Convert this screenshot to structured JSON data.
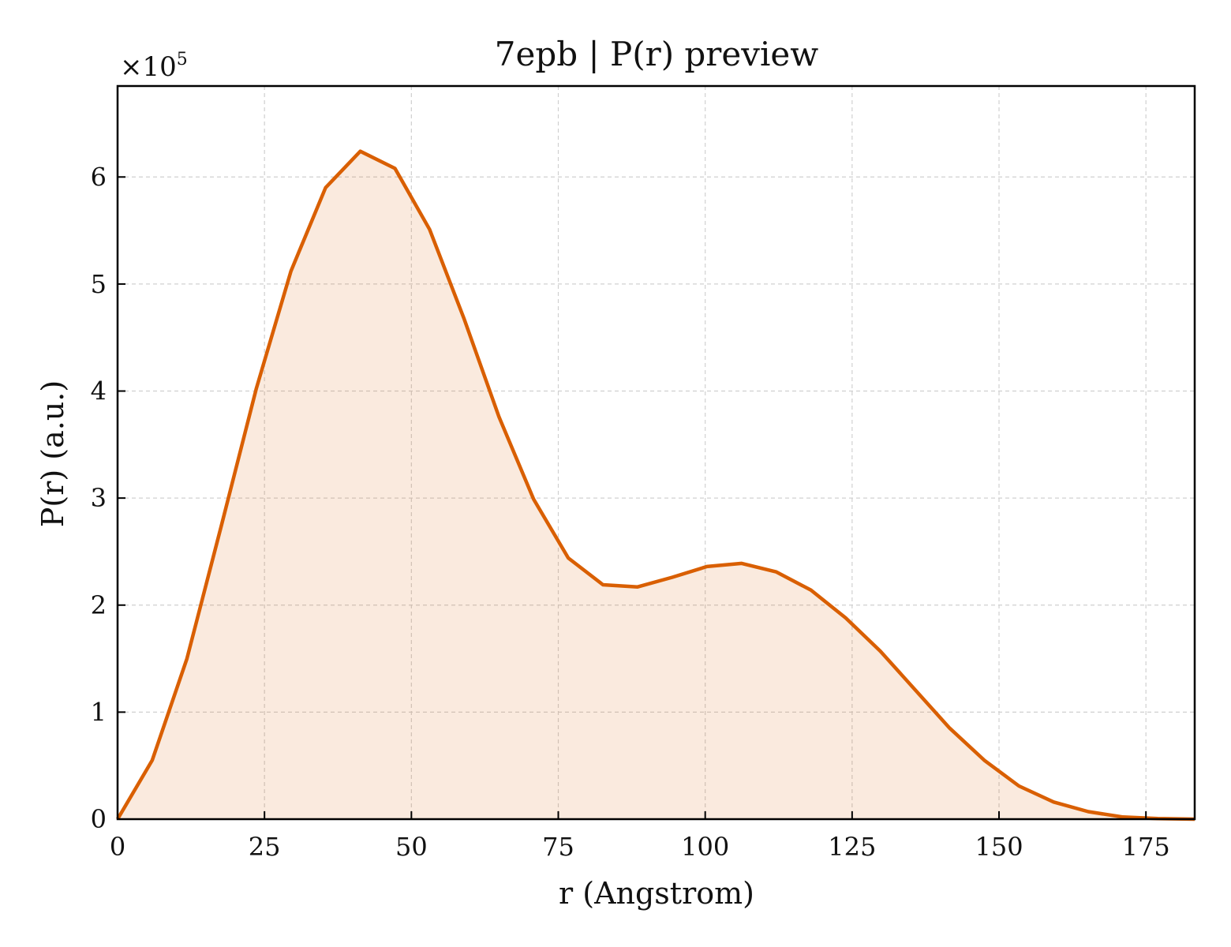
{
  "chart_data": {
    "type": "area",
    "title": "7epb | P(r) preview",
    "xlabel": "r (Angstrom)",
    "ylabel": "P(r) (a.u.)",
    "y_multiplier_label": "×10",
    "y_multiplier_exponent": "5",
    "xlim": [
      0,
      183.3
    ],
    "ylim": [
      0,
      6.85
    ],
    "y_scale_factor": 100000,
    "x_ticks": [
      "0",
      "25",
      "50",
      "75",
      "100",
      "125",
      "150",
      "175"
    ],
    "y_ticks": [
      "0",
      "1",
      "2",
      "3",
      "4",
      "5",
      "6"
    ],
    "grid": true,
    "line_color": "#d95f02",
    "fill_color": "#d95f02",
    "series": [
      {
        "x": [
          0,
          5.9,
          11.8,
          17.7,
          23.6,
          29.5,
          35.4,
          41.3,
          47.2,
          53.1,
          59.0,
          64.9,
          70.8,
          76.7,
          82.6,
          88.5,
          94.4,
          100.3,
          106.2,
          112.1,
          118.0,
          123.9,
          129.8,
          135.7,
          141.6,
          147.5,
          153.4,
          159.3,
          165.2,
          171.1,
          177.0,
          183.3
        ],
        "y": [
          0,
          0.55,
          1.5,
          2.75,
          4.02,
          5.12,
          5.9,
          6.24,
          6.08,
          5.51,
          4.67,
          3.76,
          2.99,
          2.44,
          2.19,
          2.17,
          2.26,
          2.36,
          2.39,
          2.31,
          2.14,
          1.88,
          1.57,
          1.21,
          0.85,
          0.55,
          0.31,
          0.16,
          0.07,
          0.02,
          0.005,
          0.0
        ]
      }
    ]
  }
}
